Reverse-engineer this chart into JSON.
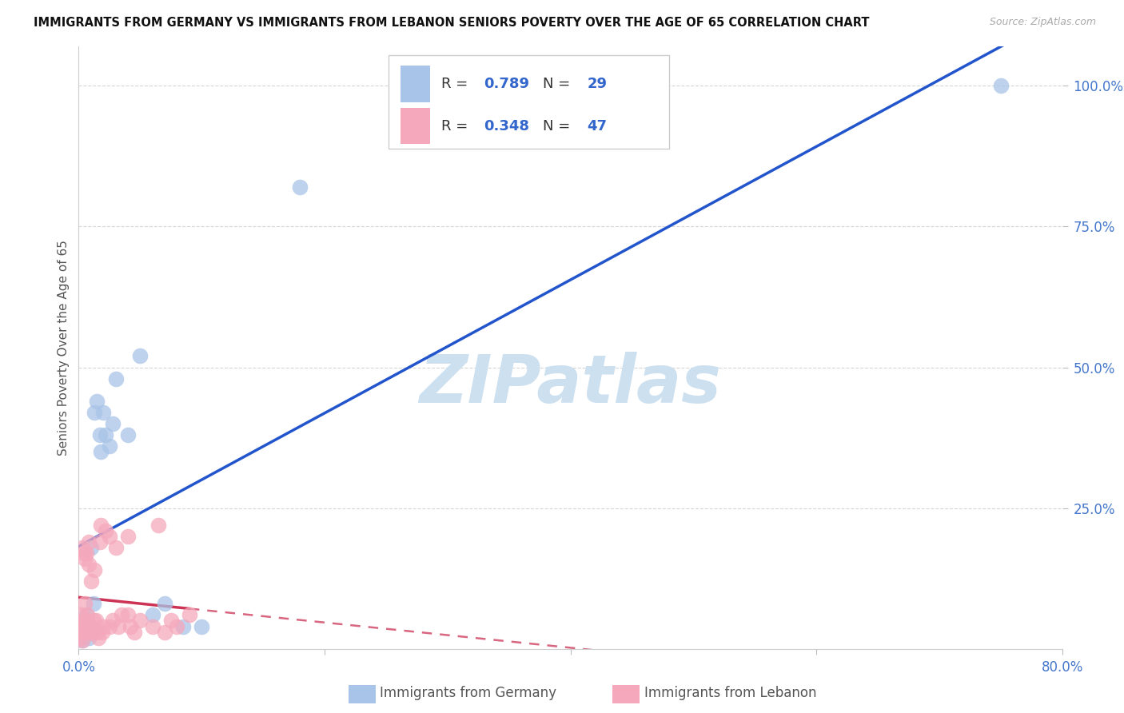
{
  "title": "IMMIGRANTS FROM GERMANY VS IMMIGRANTS FROM LEBANON SENIORS POVERTY OVER THE AGE OF 65 CORRELATION CHART",
  "source": "Source: ZipAtlas.com",
  "ylabel": "Seniors Poverty Over the Age of 65",
  "xlim": [
    0.0,
    0.8
  ],
  "ylim": [
    0.0,
    1.07
  ],
  "germany_R": 0.789,
  "germany_N": 29,
  "lebanon_R": 0.348,
  "lebanon_N": 47,
  "germany_color": "#a8c4e8",
  "lebanon_color": "#f5a8bc",
  "germany_line_color": "#2255cc",
  "lebanon_line_color": "#cc3355",
  "axis_tick_color": "#4477cc",
  "grid_color": "#cccccc",
  "watermark_color": "#cce0f0",
  "title_color": "#111111",
  "source_color": "#aaaaaa",
  "ylabel_color": "#555555",
  "germany_x": [
    0.001,
    0.002,
    0.003,
    0.004,
    0.005,
    0.006,
    0.007,
    0.008,
    0.009,
    0.01,
    0.011,
    0.012,
    0.013,
    0.015,
    0.017,
    0.018,
    0.02,
    0.022,
    0.025,
    0.028,
    0.03,
    0.04,
    0.05,
    0.06,
    0.07,
    0.085,
    0.1,
    0.18,
    0.75
  ],
  "germany_y": [
    0.02,
    0.03,
    0.015,
    0.04,
    0.05,
    0.06,
    0.035,
    0.02,
    0.04,
    0.18,
    0.03,
    0.08,
    0.42,
    0.44,
    0.38,
    0.35,
    0.42,
    0.38,
    0.36,
    0.4,
    0.48,
    0.38,
    0.52,
    0.06,
    0.08,
    0.04,
    0.04,
    0.82,
    1.0
  ],
  "lebanon_x": [
    0.001,
    0.001,
    0.002,
    0.002,
    0.003,
    0.003,
    0.004,
    0.004,
    0.005,
    0.005,
    0.006,
    0.006,
    0.007,
    0.007,
    0.008,
    0.008,
    0.009,
    0.01,
    0.01,
    0.011,
    0.012,
    0.013,
    0.014,
    0.015,
    0.016,
    0.017,
    0.018,
    0.019,
    0.02,
    0.022,
    0.025,
    0.025,
    0.028,
    0.03,
    0.032,
    0.035,
    0.04,
    0.04,
    0.042,
    0.045,
    0.05,
    0.06,
    0.065,
    0.07,
    0.075,
    0.08,
    0.09
  ],
  "lebanon_y": [
    0.02,
    0.04,
    0.03,
    0.06,
    0.015,
    0.18,
    0.17,
    0.05,
    0.08,
    0.16,
    0.05,
    0.17,
    0.04,
    0.06,
    0.15,
    0.19,
    0.03,
    0.04,
    0.12,
    0.03,
    0.05,
    0.14,
    0.05,
    0.03,
    0.02,
    0.19,
    0.22,
    0.03,
    0.04,
    0.21,
    0.2,
    0.04,
    0.05,
    0.18,
    0.04,
    0.06,
    0.2,
    0.06,
    0.04,
    0.03,
    0.05,
    0.04,
    0.22,
    0.03,
    0.05,
    0.04,
    0.06
  ],
  "ytick_positions": [
    0.25,
    0.5,
    0.75,
    1.0
  ],
  "ytick_labels": [
    "25.0%",
    "50.0%",
    "75.0%",
    "100.0%"
  ],
  "xtick_positions": [
    0.0,
    0.2,
    0.4,
    0.6,
    0.8
  ],
  "xtick_labels": [
    "0.0%",
    "",
    "",
    "",
    "80.0%"
  ],
  "legend_germany_label": "R = 0.789   N = 29",
  "legend_lebanon_label": "R = 0.348   N = 47",
  "bottom_legend_germany": "Immigrants from Germany",
  "bottom_legend_lebanon": "Immigrants from Lebanon",
  "watermark_text": "ZIPatlas"
}
